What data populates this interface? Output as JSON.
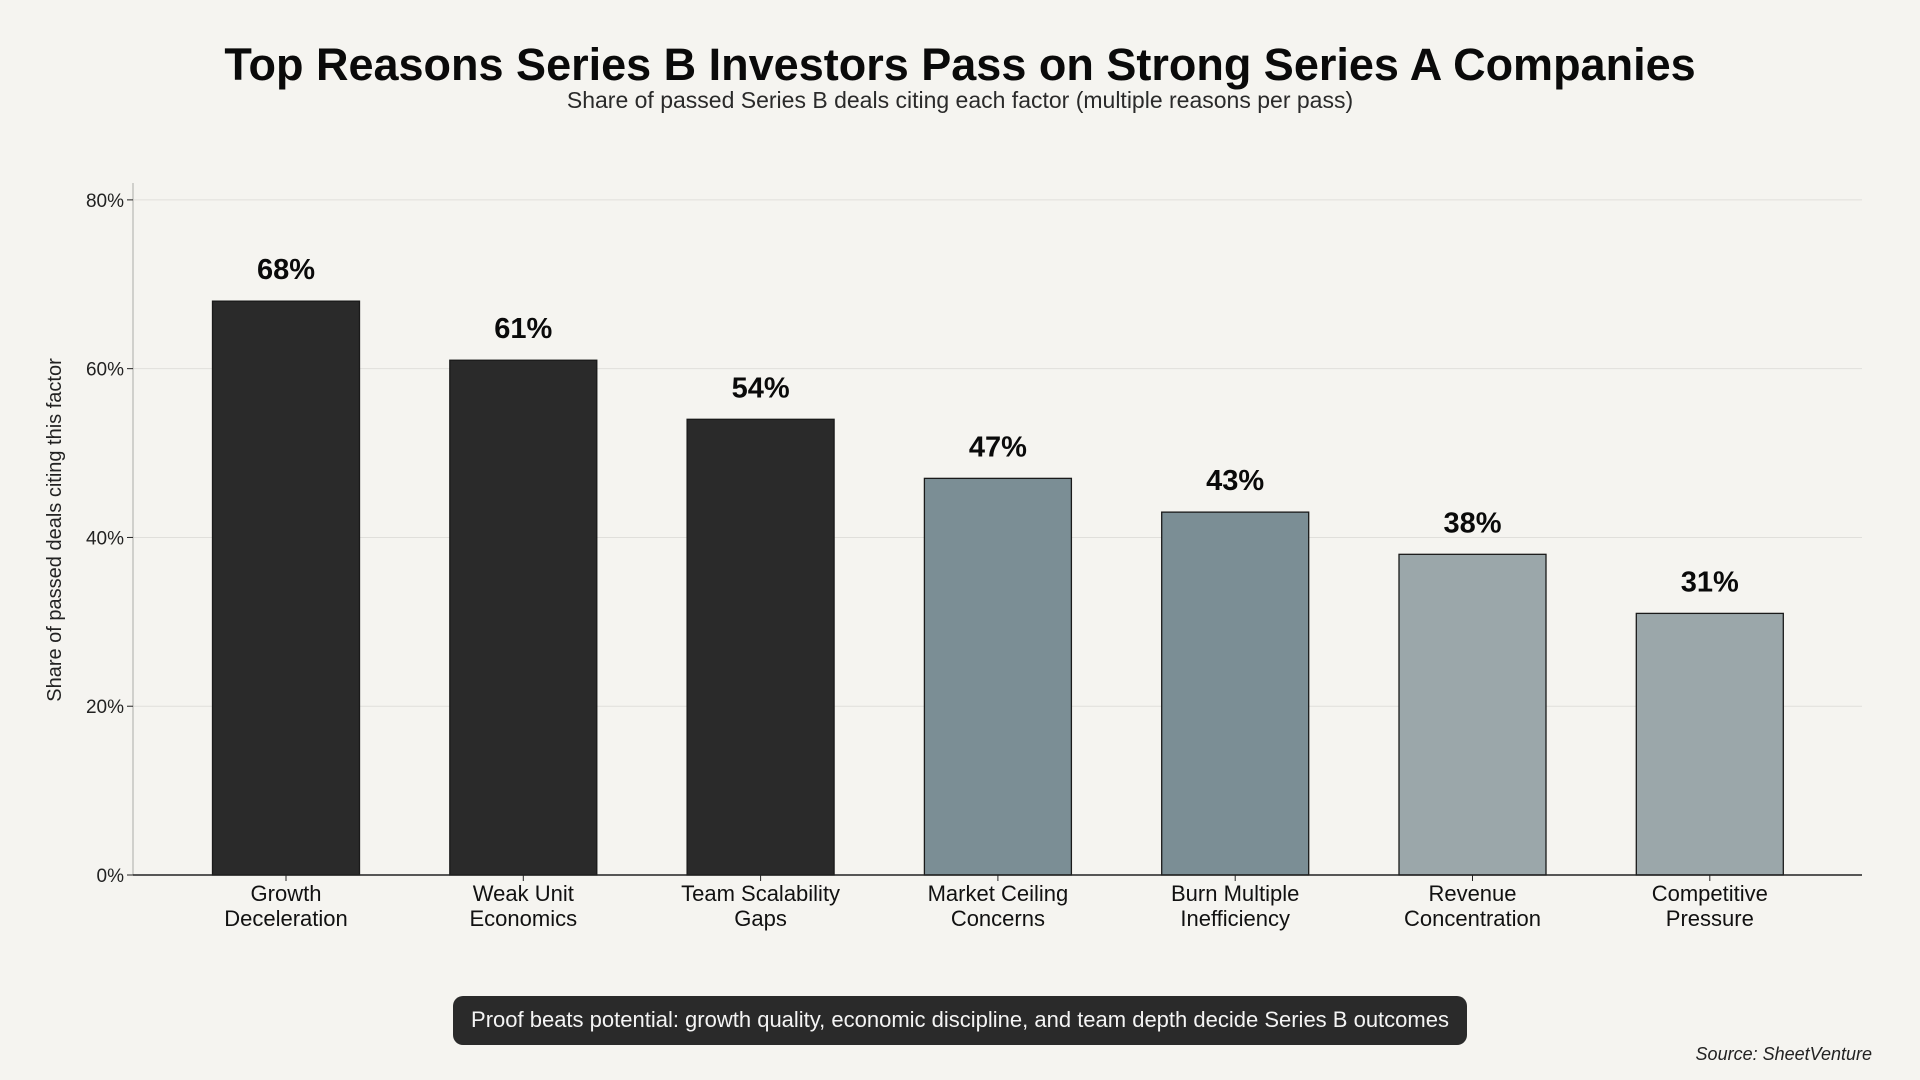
{
  "chart_data": {
    "type": "bar",
    "title": "Top Reasons Series B Investors Pass on Strong Series A Companies",
    "subtitle": "Share of passed Series B deals citing each factor (multiple reasons per pass)",
    "xlabel": "",
    "ylabel": "Share of passed deals citing this factor",
    "categories": [
      [
        "Growth",
        "Deceleration"
      ],
      [
        "Weak Unit",
        "Economics"
      ],
      [
        "Team Scalability",
        "Gaps"
      ],
      [
        "Market Ceiling",
        "Concerns"
      ],
      [
        "Burn Multiple",
        "Inefficiency"
      ],
      [
        "Revenue",
        "Concentration"
      ],
      [
        "Competitive",
        "Pressure"
      ]
    ],
    "values": [
      68,
      61,
      54,
      47,
      43,
      38,
      31
    ],
    "value_labels": [
      "68%",
      "61%",
      "54%",
      "47%",
      "43%",
      "38%",
      "31%"
    ],
    "bar_colors": [
      "#2a2a2a",
      "#2a2a2a",
      "#2a2a2a",
      "#7b8e95",
      "#7b8e95",
      "#9ba7aa",
      "#9ba7aa"
    ],
    "ylim": [
      0,
      82
    ],
    "yticks": [
      0,
      20,
      40,
      60,
      80
    ],
    "ytick_labels": [
      "0%",
      "20%",
      "40%",
      "60%",
      "80%"
    ],
    "grid": true,
    "annotation": "Proof beats potential: growth quality, economic discipline, and team depth decide Series B outcomes",
    "source": "Source: SheetVenture"
  },
  "colors": {
    "background": "#f5f4f0",
    "grid": "#e0dfdb",
    "axis": "#222222",
    "callout_bg": "#2a2a2a"
  }
}
